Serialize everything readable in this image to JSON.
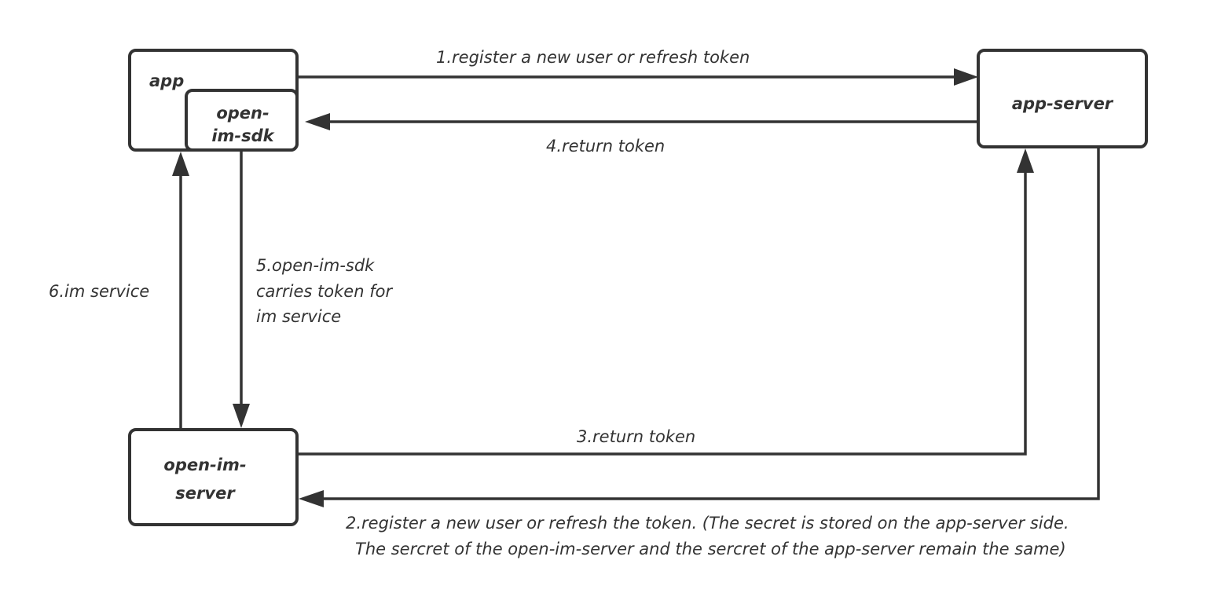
{
  "nodes": {
    "app": "app",
    "sdk": [
      "open-",
      "im-sdk"
    ],
    "app_server": "app-server",
    "im_server": [
      "open-im-",
      "server"
    ]
  },
  "edges": {
    "e1": "1.register a new user or refresh token",
    "e2": [
      "2.register a new user or refresh the token. (The secret is stored on the app-server side.",
      "The sercret of the open-im-server and the sercret of the app-server remain the same)"
    ],
    "e3": "3.return token",
    "e4": "4.return token",
    "e5": [
      "5.open-im-sdk",
      "carries token for",
      "im service"
    ],
    "e6": "6.im service"
  }
}
